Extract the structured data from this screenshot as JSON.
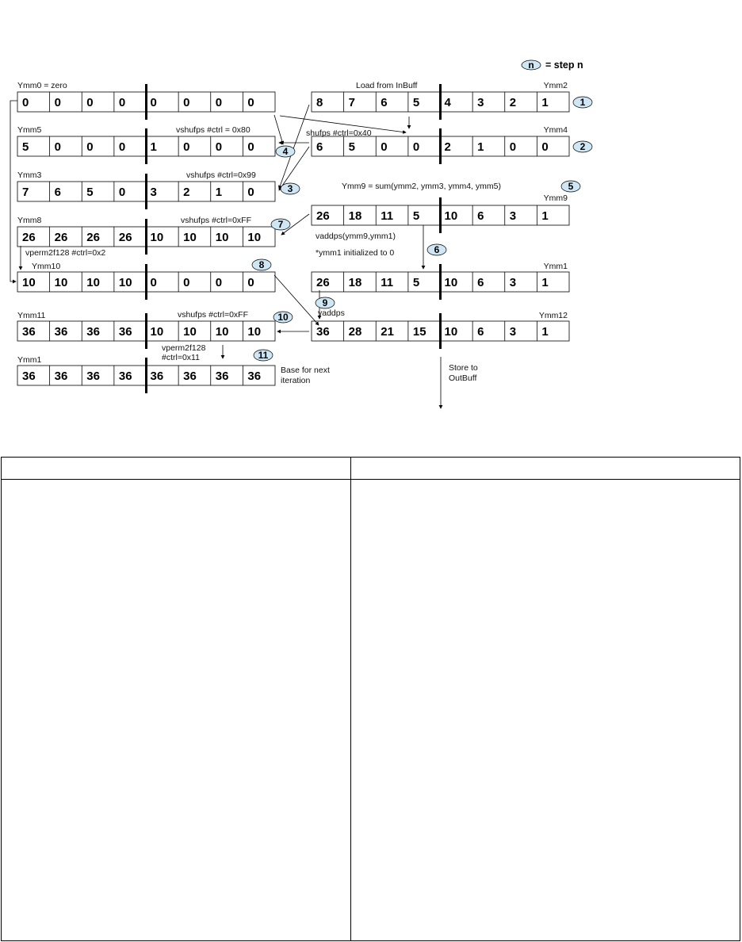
{
  "legend": {
    "symbol": "n",
    "text": "= step n"
  },
  "registers": [
    {
      "id": "ymm0",
      "label": "Ymm0 = zero",
      "values": [
        "0",
        "0",
        "0",
        "0",
        "0",
        "0",
        "0",
        "0"
      ]
    },
    {
      "id": "ymm5",
      "label": "Ymm5",
      "values": [
        "5",
        "0",
        "0",
        "0",
        "1",
        "0",
        "0",
        "0"
      ]
    },
    {
      "id": "ymm3",
      "label": "Ymm3",
      "values": [
        "7",
        "6",
        "5",
        "0",
        "3",
        "2",
        "1",
        "0"
      ]
    },
    {
      "id": "ymm8",
      "label": "Ymm8",
      "values": [
        "26",
        "26",
        "26",
        "26",
        "10",
        "10",
        "10",
        "10"
      ]
    },
    {
      "id": "ymm10",
      "label": "Ymm10",
      "values": [
        "10",
        "10",
        "10",
        "10",
        "0",
        "0",
        "0",
        "0"
      ]
    },
    {
      "id": "ymm11",
      "label": "Ymm11",
      "values": [
        "36",
        "36",
        "36",
        "36",
        "10",
        "10",
        "10",
        "10"
      ]
    },
    {
      "id": "ymm1-next",
      "label": "Ymm1",
      "values": [
        "36",
        "36",
        "36",
        "36",
        "36",
        "36",
        "36",
        "36"
      ]
    },
    {
      "id": "ymm2",
      "label": "Ymm2",
      "values": [
        "8",
        "7",
        "6",
        "5",
        "4",
        "3",
        "2",
        "1"
      ]
    },
    {
      "id": "ymm4",
      "label": "Ymm4",
      "values": [
        "6",
        "5",
        "0",
        "0",
        "2",
        "1",
        "0",
        "0"
      ]
    },
    {
      "id": "ymm9",
      "label": "Ymm9",
      "values": [
        "26",
        "18",
        "11",
        "5",
        "10",
        "6",
        "3",
        "1"
      ]
    },
    {
      "id": "ymm1",
      "label": "Ymm1",
      "values": [
        "26",
        "18",
        "11",
        "5",
        "10",
        "6",
        "3",
        "1"
      ]
    },
    {
      "id": "ymm12",
      "label": "Ymm12",
      "values": [
        "36",
        "28",
        "21",
        "15",
        "10",
        "6",
        "3",
        "1"
      ]
    }
  ],
  "annotations": {
    "load": "Load from InBuff",
    "shuf40": "shufps #ctrl=0x40",
    "vshuf80": "vshufps #ctrl = 0x80",
    "vshuf99": "vshufps #ctrl=0x99",
    "sum": "Ymm9 = sum(ymm2, ymm3, ymm4, ymm5)",
    "vshufFF": "vshufps #ctrl=0xFF",
    "vaddps1": "vaddps(ymm9,ymm1)",
    "init": "*ymm1 initialized to 0",
    "vperm2": "vperm2f128 #ctrl=0x2",
    "vaddps": "vaddps",
    "vshufFF2": "vshufps #ctrl=0xFF",
    "vperm11a": "vperm2f128",
    "vperm11b": "#ctrl=0x11",
    "base1": "Base for next",
    "base2": "iteration",
    "store1": "Store to",
    "store2": "OutBuff"
  },
  "steps": [
    "1",
    "2",
    "3",
    "4",
    "5",
    "6",
    "7",
    "8",
    "9",
    "10",
    "11"
  ],
  "table": {
    "headers": [
      "",
      ""
    ],
    "cells": [
      "",
      ""
    ]
  }
}
